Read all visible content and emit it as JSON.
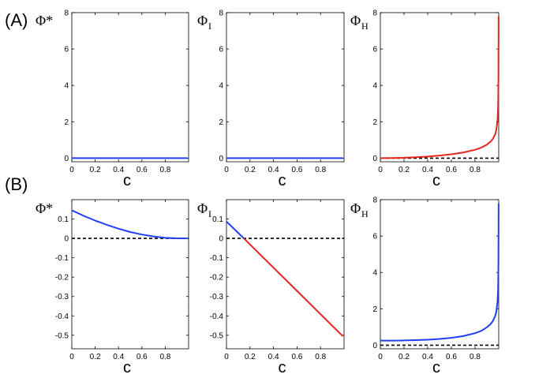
{
  "panel_labels": [
    "(A)",
    "(B)"
  ],
  "chart_data": [
    {
      "id": "A1",
      "type": "line",
      "title": "",
      "ylabel": "Φ*",
      "ylabel_sub": "",
      "xlabel": "c",
      "xlim": [
        0,
        1
      ],
      "ylim": [
        -0.2,
        8
      ],
      "xticks": [
        0,
        0.2,
        0.4,
        0.6,
        0.8
      ],
      "xtick_labels": [
        "0",
        "0.2",
        "0.4",
        "0.6",
        "0.8"
      ],
      "yticks": [
        0,
        2,
        4,
        6,
        8
      ],
      "ytick_labels": [
        "0",
        "2",
        "4",
        "6",
        "8"
      ],
      "zero_line": false,
      "series": [
        {
          "name": "Phi*",
          "color": "#1f3ff5",
          "x": [
            0,
            0.99
          ],
          "y": [
            0,
            0
          ]
        }
      ]
    },
    {
      "id": "A2",
      "type": "line",
      "title": "",
      "ylabel": "Φ",
      "ylabel_sub": "I",
      "xlabel": "c",
      "xlim": [
        0,
        1
      ],
      "ylim": [
        -0.2,
        8
      ],
      "xticks": [
        0,
        0.2,
        0.4,
        0.6,
        0.8
      ],
      "xtick_labels": [
        "0",
        "0.2",
        "0.4",
        "0.6",
        "0.8"
      ],
      "yticks": [
        0,
        2,
        4,
        6,
        8
      ],
      "ytick_labels": [
        "0",
        "2",
        "4",
        "6",
        "8"
      ],
      "zero_line": false,
      "series": [
        {
          "name": "Phi_I",
          "color": "#1f3ff5",
          "x": [
            0,
            0.99
          ],
          "y": [
            0,
            0
          ]
        }
      ]
    },
    {
      "id": "A3",
      "type": "line",
      "title": "",
      "ylabel": "Φ",
      "ylabel_sub": "H",
      "xlabel": "c",
      "xlim": [
        0,
        1
      ],
      "ylim": [
        -0.2,
        8
      ],
      "xticks": [
        0,
        0.2,
        0.4,
        0.6,
        0.8
      ],
      "xtick_labels": [
        "0",
        "0.2",
        "0.4",
        "0.6",
        "0.8"
      ],
      "yticks": [
        0,
        2,
        4,
        6,
        8
      ],
      "ytick_labels": [
        "0",
        "2",
        "4",
        "6",
        "8"
      ],
      "zero_line": true,
      "series": [
        {
          "name": "Phi_H",
          "color": "#e8241c",
          "x": [
            0,
            0.1,
            0.2,
            0.3,
            0.4,
            0.5,
            0.6,
            0.7,
            0.8,
            0.85,
            0.9,
            0.93,
            0.95,
            0.97,
            0.98,
            0.99,
            0.995,
            0.998,
            0.999
          ],
          "y": [
            0,
            0.005,
            0.02,
            0.05,
            0.09,
            0.14,
            0.21,
            0.31,
            0.46,
            0.57,
            0.74,
            0.9,
            1.05,
            1.3,
            1.55,
            2.1,
            2.8,
            4.5,
            7.8
          ]
        }
      ]
    },
    {
      "id": "B1",
      "type": "line",
      "title": "",
      "ylabel": "Φ*",
      "ylabel_sub": "",
      "xlabel": "c",
      "xlim": [
        0,
        1
      ],
      "ylim": [
        -0.57,
        0.2
      ],
      "xticks": [
        0,
        0.2,
        0.4,
        0.6,
        0.8
      ],
      "xtick_labels": [
        "0",
        "0.2",
        "0.4",
        "0.6",
        "0.8"
      ],
      "yticks": [
        -0.5,
        -0.4,
        -0.3,
        -0.2,
        -0.1,
        0,
        0.1
      ],
      "ytick_labels": [
        "-0.5",
        "-0.4",
        "-0.3",
        "-0.2",
        "-0.1",
        "0",
        "0.1"
      ],
      "zero_line": true,
      "series": [
        {
          "name": "Phi*",
          "color": "#1f3ff5",
          "x": [
            0,
            0.1,
            0.2,
            0.3,
            0.4,
            0.5,
            0.6,
            0.7,
            0.8,
            0.9,
            0.99
          ],
          "y": [
            0.145,
            0.117,
            0.092,
            0.07,
            0.05,
            0.033,
            0.02,
            0.01,
            0.003,
            0.0005,
            0
          ]
        }
      ]
    },
    {
      "id": "B2",
      "type": "line",
      "title": "",
      "ylabel": "Φ",
      "ylabel_sub": "I",
      "xlabel": "c",
      "xlim": [
        0,
        1
      ],
      "ylim": [
        -0.57,
        0.2
      ],
      "xticks": [
        0,
        0.2,
        0.4,
        0.6,
        0.8
      ],
      "xtick_labels": [
        "0",
        "0.2",
        "0.4",
        "0.6",
        "0.8"
      ],
      "yticks": [
        -0.5,
        -0.4,
        -0.3,
        -0.2,
        -0.1,
        0,
        0.1
      ],
      "ytick_labels": [
        "-0.5",
        "-0.4",
        "-0.3",
        "-0.2",
        "-0.1",
        "0",
        "0.1"
      ],
      "zero_line": true,
      "series": [
        {
          "name": "Phi_I positive",
          "color": "#1f3ff5",
          "x": [
            0,
            0.148
          ],
          "y": [
            0.087,
            0
          ]
        },
        {
          "name": "Phi_I negative",
          "color": "#e8241c",
          "x": [
            0.148,
            0.99
          ],
          "y": [
            0,
            -0.505
          ]
        }
      ]
    },
    {
      "id": "B3",
      "type": "line",
      "title": "",
      "ylabel": "Φ",
      "ylabel_sub": "H",
      "xlabel": "c",
      "xlim": [
        0,
        1
      ],
      "ylim": [
        -0.2,
        8
      ],
      "xticks": [
        0,
        0.2,
        0.4,
        0.6,
        0.8
      ],
      "xtick_labels": [
        "0",
        "0.2",
        "0.4",
        "0.6",
        "0.8"
      ],
      "yticks": [
        0,
        2,
        4,
        6,
        8
      ],
      "ytick_labels": [
        "0",
        "2",
        "4",
        "6",
        "8"
      ],
      "zero_line": true,
      "series": [
        {
          "name": "Phi_H",
          "color": "#1f3ff5",
          "x": [
            0,
            0.1,
            0.2,
            0.3,
            0.4,
            0.5,
            0.6,
            0.7,
            0.8,
            0.85,
            0.9,
            0.93,
            0.95,
            0.97,
            0.98,
            0.99,
            0.995,
            0.998,
            0.999
          ],
          "y": [
            0.25,
            0.25,
            0.26,
            0.28,
            0.3,
            0.34,
            0.4,
            0.5,
            0.66,
            0.78,
            0.98,
            1.15,
            1.32,
            1.6,
            1.85,
            2.4,
            3.1,
            4.7,
            7.8
          ]
        }
      ]
    }
  ]
}
